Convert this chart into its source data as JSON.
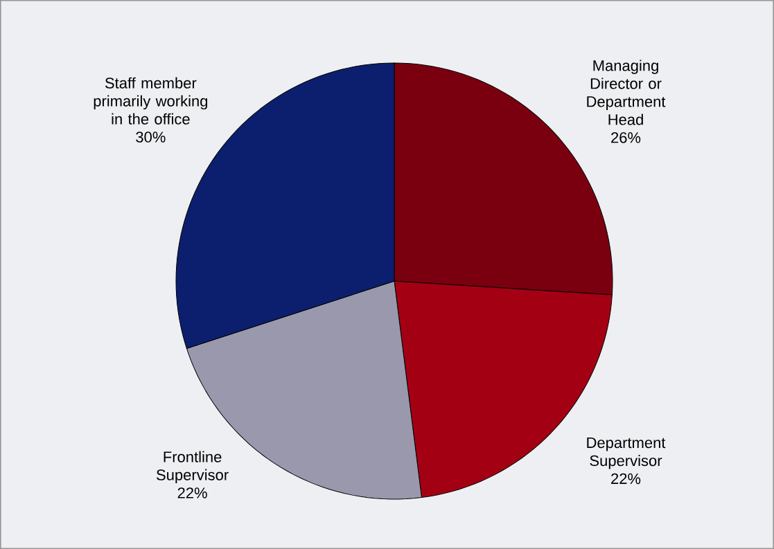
{
  "chart_data": {
    "type": "pie",
    "categories": [
      "Managing Director or Department Head",
      "Department Supervisor",
      "Frontline Supervisor",
      "Staff member primarily working in the office"
    ],
    "values": [
      26,
      22,
      22,
      30
    ],
    "value_labels": [
      "26%",
      "22%",
      "22%",
      "30%"
    ],
    "colors": [
      "#7a0010",
      "#a30014",
      "#9a98ad",
      "#0c1f6e"
    ]
  }
}
